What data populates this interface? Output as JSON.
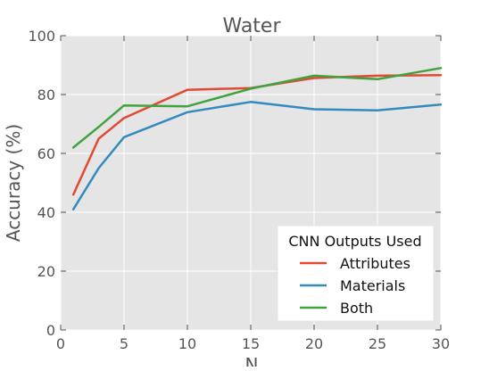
{
  "chart_data": {
    "type": "line",
    "title": "Water",
    "xlabel": "N",
    "ylabel": "Accuracy (%)",
    "xlim": [
      0,
      30
    ],
    "ylim": [
      0,
      100
    ],
    "x_ticks": [
      0,
      5,
      10,
      15,
      20,
      25,
      30
    ],
    "y_ticks": [
      0,
      20,
      40,
      60,
      80,
      100
    ],
    "grid": true,
    "legend": {
      "title": "CNN Outputs Used",
      "position": "bottom-right"
    },
    "x": [
      1,
      3,
      5,
      10,
      15,
      20,
      25,
      30
    ],
    "series": [
      {
        "name": "Attributes",
        "color": "#e24a33",
        "values": [
          46,
          65,
          72,
          81.6,
          82.2,
          85.6,
          86.4,
          86.6
        ]
      },
      {
        "name": "Materials",
        "color": "#348abd",
        "values": [
          41,
          55,
          65.5,
          74,
          77.5,
          75,
          74.6,
          76.6
        ]
      },
      {
        "name": "Both",
        "color": "#41a33f",
        "values": [
          62,
          69,
          76.3,
          76,
          82,
          86.4,
          85.2,
          89
        ]
      }
    ],
    "plot_background": "#e5e5e5",
    "grid_color": "#ffffff"
  }
}
